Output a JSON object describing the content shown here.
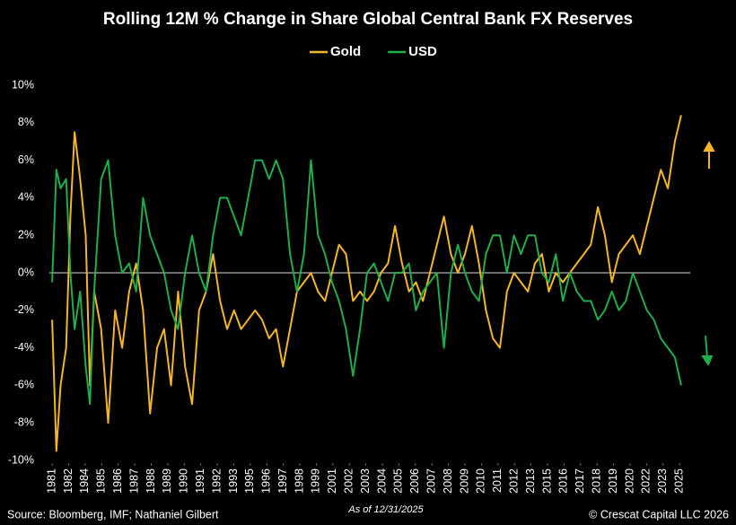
{
  "chart_data": {
    "type": "line",
    "title": "Rolling 12M % Change in Share Global Central Bank FX Reserves",
    "source": "Source: Bloomberg, IMF; Nathaniel Gilbert",
    "date_note": "As of 12/31/2025",
    "copyright": "© Crescat Capital LLC 2026",
    "legend": "top",
    "x": [
      1981,
      1981.3,
      1981.6,
      1982,
      1982.3,
      1982.6,
      1983,
      1983.4,
      1983.7,
      1984,
      1984.5,
      1985,
      1985.5,
      1986,
      1986.5,
      1987,
      1987.5,
      1988,
      1988.5,
      1989,
      1989.5,
      1990,
      1990.5,
      1991,
      1991.5,
      1992,
      1992.5,
      1993,
      1993.5,
      1994,
      1994.5,
      1995,
      1995.5,
      1996,
      1996.5,
      1997,
      1997.5,
      1998,
      1998.5,
      1999,
      1999.5,
      2000,
      2000.5,
      2001,
      2001.5,
      2002,
      2002.5,
      2003,
      2003.5,
      2004,
      2004.5,
      2005,
      2005.5,
      2006,
      2006.5,
      2007,
      2007.5,
      2008,
      2008.5,
      2009,
      2009.5,
      2010,
      2010.5,
      2011,
      2011.5,
      2012,
      2012.5,
      2013,
      2013.5,
      2014,
      2014.5,
      2015,
      2015.5,
      2016,
      2016.5,
      2017,
      2017.5,
      2018,
      2018.5,
      2019,
      2019.5,
      2020,
      2020.5,
      2021,
      2021.5,
      2022,
      2022.5,
      2023,
      2023.5,
      2024,
      2024.5,
      2025,
      2025.5,
      2025.95
    ],
    "series": [
      {
        "name": "Gold",
        "color": "#f5b52a",
        "values": [
          -2.5,
          -9.5,
          -6,
          -4,
          3,
          7.5,
          5,
          2,
          -6,
          -1,
          -3,
          -8,
          -2,
          -4,
          -1,
          0.5,
          -2,
          -7.5,
          -4,
          -3,
          -6,
          -1,
          -5,
          -7,
          -2,
          -1,
          1,
          -1.5,
          -3,
          -2,
          -3,
          -2.5,
          -2,
          -2.5,
          -3.5,
          -3,
          -5,
          -3,
          -1,
          -0.5,
          0,
          -1,
          -1.5,
          0,
          1.5,
          1,
          -1.5,
          -1,
          -1.5,
          -1,
          0,
          0.5,
          2.5,
          0.5,
          -1,
          -0.5,
          -1.5,
          0,
          1.5,
          3,
          1,
          0,
          1,
          2.5,
          0.5,
          -2,
          -3.5,
          -4,
          -1,
          0,
          -0.5,
          -1,
          0.5,
          1,
          -1,
          0,
          -0.5,
          0,
          0.5,
          1,
          1.5,
          3.5,
          2,
          -0.5,
          1,
          1.5,
          2,
          1,
          2.5,
          4,
          5.5,
          4.5,
          7,
          8.4
        ]
      },
      {
        "name": "USD",
        "color": "#1fae4b",
        "values": [
          -0.5,
          5.5,
          4.5,
          5,
          0,
          -3,
          -1,
          -5,
          -7,
          -1,
          5,
          6,
          2,
          0,
          0.5,
          -1,
          4,
          2,
          1,
          0,
          -2,
          -3,
          0,
          2,
          0,
          -1,
          2,
          4,
          4,
          3,
          2,
          4,
          6,
          6,
          5,
          6,
          5,
          1,
          -1,
          1,
          6,
          2,
          1,
          -0.5,
          -1.5,
          -3,
          -5.5,
          -3,
          0,
          0.5,
          -0.5,
          -1.5,
          0,
          0,
          0.5,
          -2,
          -1,
          -0.5,
          0,
          -4,
          0,
          1.5,
          0,
          -1,
          -1.5,
          1,
          2,
          2,
          0,
          2,
          1,
          2,
          2,
          0,
          -0.5,
          1,
          -1.5,
          0,
          -1,
          -1.5,
          -1.5,
          -2.5,
          -2,
          -1,
          -2,
          -1.5,
          0,
          -1,
          -2,
          -2.5,
          -3.5,
          -4,
          -4.5,
          -6
        ]
      }
    ],
    "xlim": [
      1980.8,
      2026.6
    ],
    "xticks": [
      {
        "value": 1981,
        "label": "1981"
      },
      {
        "value": 1982.18,
        "label": "1982"
      },
      {
        "value": 1983.36,
        "label": "1984"
      },
      {
        "value": 1984.54,
        "label": "1985"
      },
      {
        "value": 1985.72,
        "label": "1986"
      },
      {
        "value": 1986.9,
        "label": "1987"
      },
      {
        "value": 1988.08,
        "label": "1988"
      },
      {
        "value": 1989.26,
        "label": "1989"
      },
      {
        "value": 1990.44,
        "label": "1990"
      },
      {
        "value": 1991.62,
        "label": "1991"
      },
      {
        "value": 1992.8,
        "label": "1992"
      },
      {
        "value": 1993.98,
        "label": "1993"
      },
      {
        "value": 1995.16,
        "label": "1995"
      },
      {
        "value": 1996.34,
        "label": "1996"
      },
      {
        "value": 1997.52,
        "label": "1997"
      },
      {
        "value": 1998.7,
        "label": "1998"
      },
      {
        "value": 1999.88,
        "label": "1999"
      },
      {
        "value": 2001.06,
        "label": "2001"
      },
      {
        "value": 2002.24,
        "label": "2002"
      },
      {
        "value": 2003.42,
        "label": "2003"
      },
      {
        "value": 2004.6,
        "label": "2004"
      },
      {
        "value": 2005.78,
        "label": "2005"
      },
      {
        "value": 2006.96,
        "label": "2006"
      },
      {
        "value": 2008.14,
        "label": "2007"
      },
      {
        "value": 2009.32,
        "label": "2008"
      },
      {
        "value": 2010.5,
        "label": "2009"
      },
      {
        "value": 2011.68,
        "label": "2010"
      },
      {
        "value": 2012.86,
        "label": "2011"
      },
      {
        "value": 2014.04,
        "label": "2012"
      },
      {
        "value": 2015.22,
        "label": "2013"
      },
      {
        "value": 2016.4,
        "label": "2015"
      },
      {
        "value": 2017.58,
        "label": "2016"
      },
      {
        "value": 2018.76,
        "label": "2017"
      },
      {
        "value": 2019.94,
        "label": "2018"
      },
      {
        "value": 2021.12,
        "label": "2019"
      },
      {
        "value": 2022.3,
        "label": "2020"
      },
      {
        "value": 2023.48,
        "label": "2022"
      },
      {
        "value": 2024.66,
        "label": "2023"
      },
      {
        "value": 2025.84,
        "label": "2025"
      }
    ],
    "ylim": [
      -10,
      10
    ],
    "yticks": [
      {
        "value": -10,
        "label": "-10%"
      },
      {
        "value": -8,
        "label": "-8%"
      },
      {
        "value": -6,
        "label": "-6%"
      },
      {
        "value": -4,
        "label": "-4%"
      },
      {
        "value": -2,
        "label": "-2%"
      },
      {
        "value": 0,
        "label": "0%"
      },
      {
        "value": 2,
        "label": "2%"
      },
      {
        "value": 4,
        "label": "4%"
      },
      {
        "value": 6,
        "label": "6%"
      },
      {
        "value": 8,
        "label": "8%"
      },
      {
        "value": 10,
        "label": "10%"
      }
    ],
    "grid": false
  }
}
